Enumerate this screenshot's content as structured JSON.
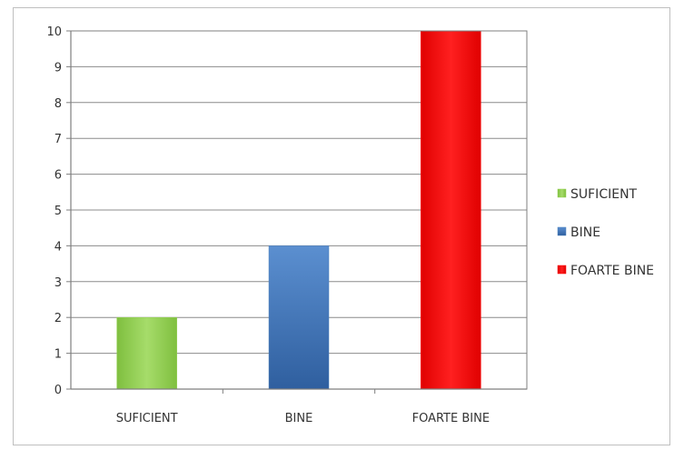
{
  "chart_data": {
    "type": "bar",
    "categories": [
      "SUFICIENT",
      "BINE",
      "FOARTE BINE"
    ],
    "values": [
      2,
      4,
      10
    ],
    "colors": [
      "#92d050",
      "#4f81bd",
      "#ff0000"
    ],
    "ylim": [
      0,
      10
    ],
    "yticks": [
      0,
      1,
      2,
      3,
      4,
      5,
      6,
      7,
      8,
      9,
      10
    ],
    "grid": true,
    "legend_position": "right",
    "legend": [
      "SUFICIENT",
      "BINE",
      "FOARTE BINE"
    ]
  }
}
